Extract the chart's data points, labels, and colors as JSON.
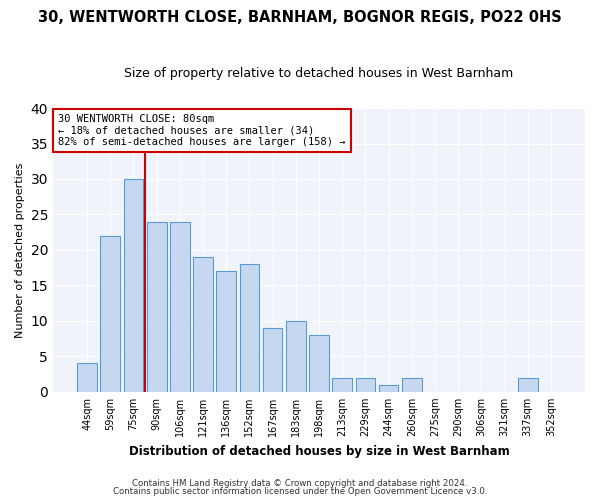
{
  "title1": "30, WENTWORTH CLOSE, BARNHAM, BOGNOR REGIS, PO22 0HS",
  "title2": "Size of property relative to detached houses in West Barnham",
  "xlabel": "Distribution of detached houses by size in West Barnham",
  "ylabel": "Number of detached properties",
  "bar_labels": [
    "44sqm",
    "59sqm",
    "75sqm",
    "90sqm",
    "106sqm",
    "121sqm",
    "136sqm",
    "152sqm",
    "167sqm",
    "183sqm",
    "198sqm",
    "213sqm",
    "229sqm",
    "244sqm",
    "260sqm",
    "275sqm",
    "290sqm",
    "306sqm",
    "321sqm",
    "337sqm",
    "352sqm"
  ],
  "bar_values": [
    4,
    22,
    30,
    24,
    24,
    19,
    17,
    18,
    9,
    10,
    8,
    2,
    2,
    1,
    2,
    0,
    0,
    0,
    0,
    2,
    0
  ],
  "bar_color": "#c5d8f0",
  "bar_edge_color": "#5b9bd5",
  "ylim": [
    0,
    40
  ],
  "yticks": [
    0,
    5,
    10,
    15,
    20,
    25,
    30,
    35,
    40
  ],
  "vline_x": 2.5,
  "vline_color": "#cc0000",
  "annotation_title": "30 WENTWORTH CLOSE: 80sqm",
  "annotation_line1": "← 18% of detached houses are smaller (34)",
  "annotation_line2": "82% of semi-detached houses are larger (158) →",
  "annotation_box_facecolor": "#ffffff",
  "annotation_box_edge": "#cc0000",
  "footer1": "Contains HM Land Registry data © Crown copyright and database right 2024.",
  "footer2": "Contains public sector information licensed under the Open Government Licence v3.0.",
  "bg_color": "#ffffff",
  "plot_bg_color": "#f0f4fa",
  "grid_color": "#ffffff",
  "title1_fontsize": 10.5,
  "title2_fontsize": 9.0
}
